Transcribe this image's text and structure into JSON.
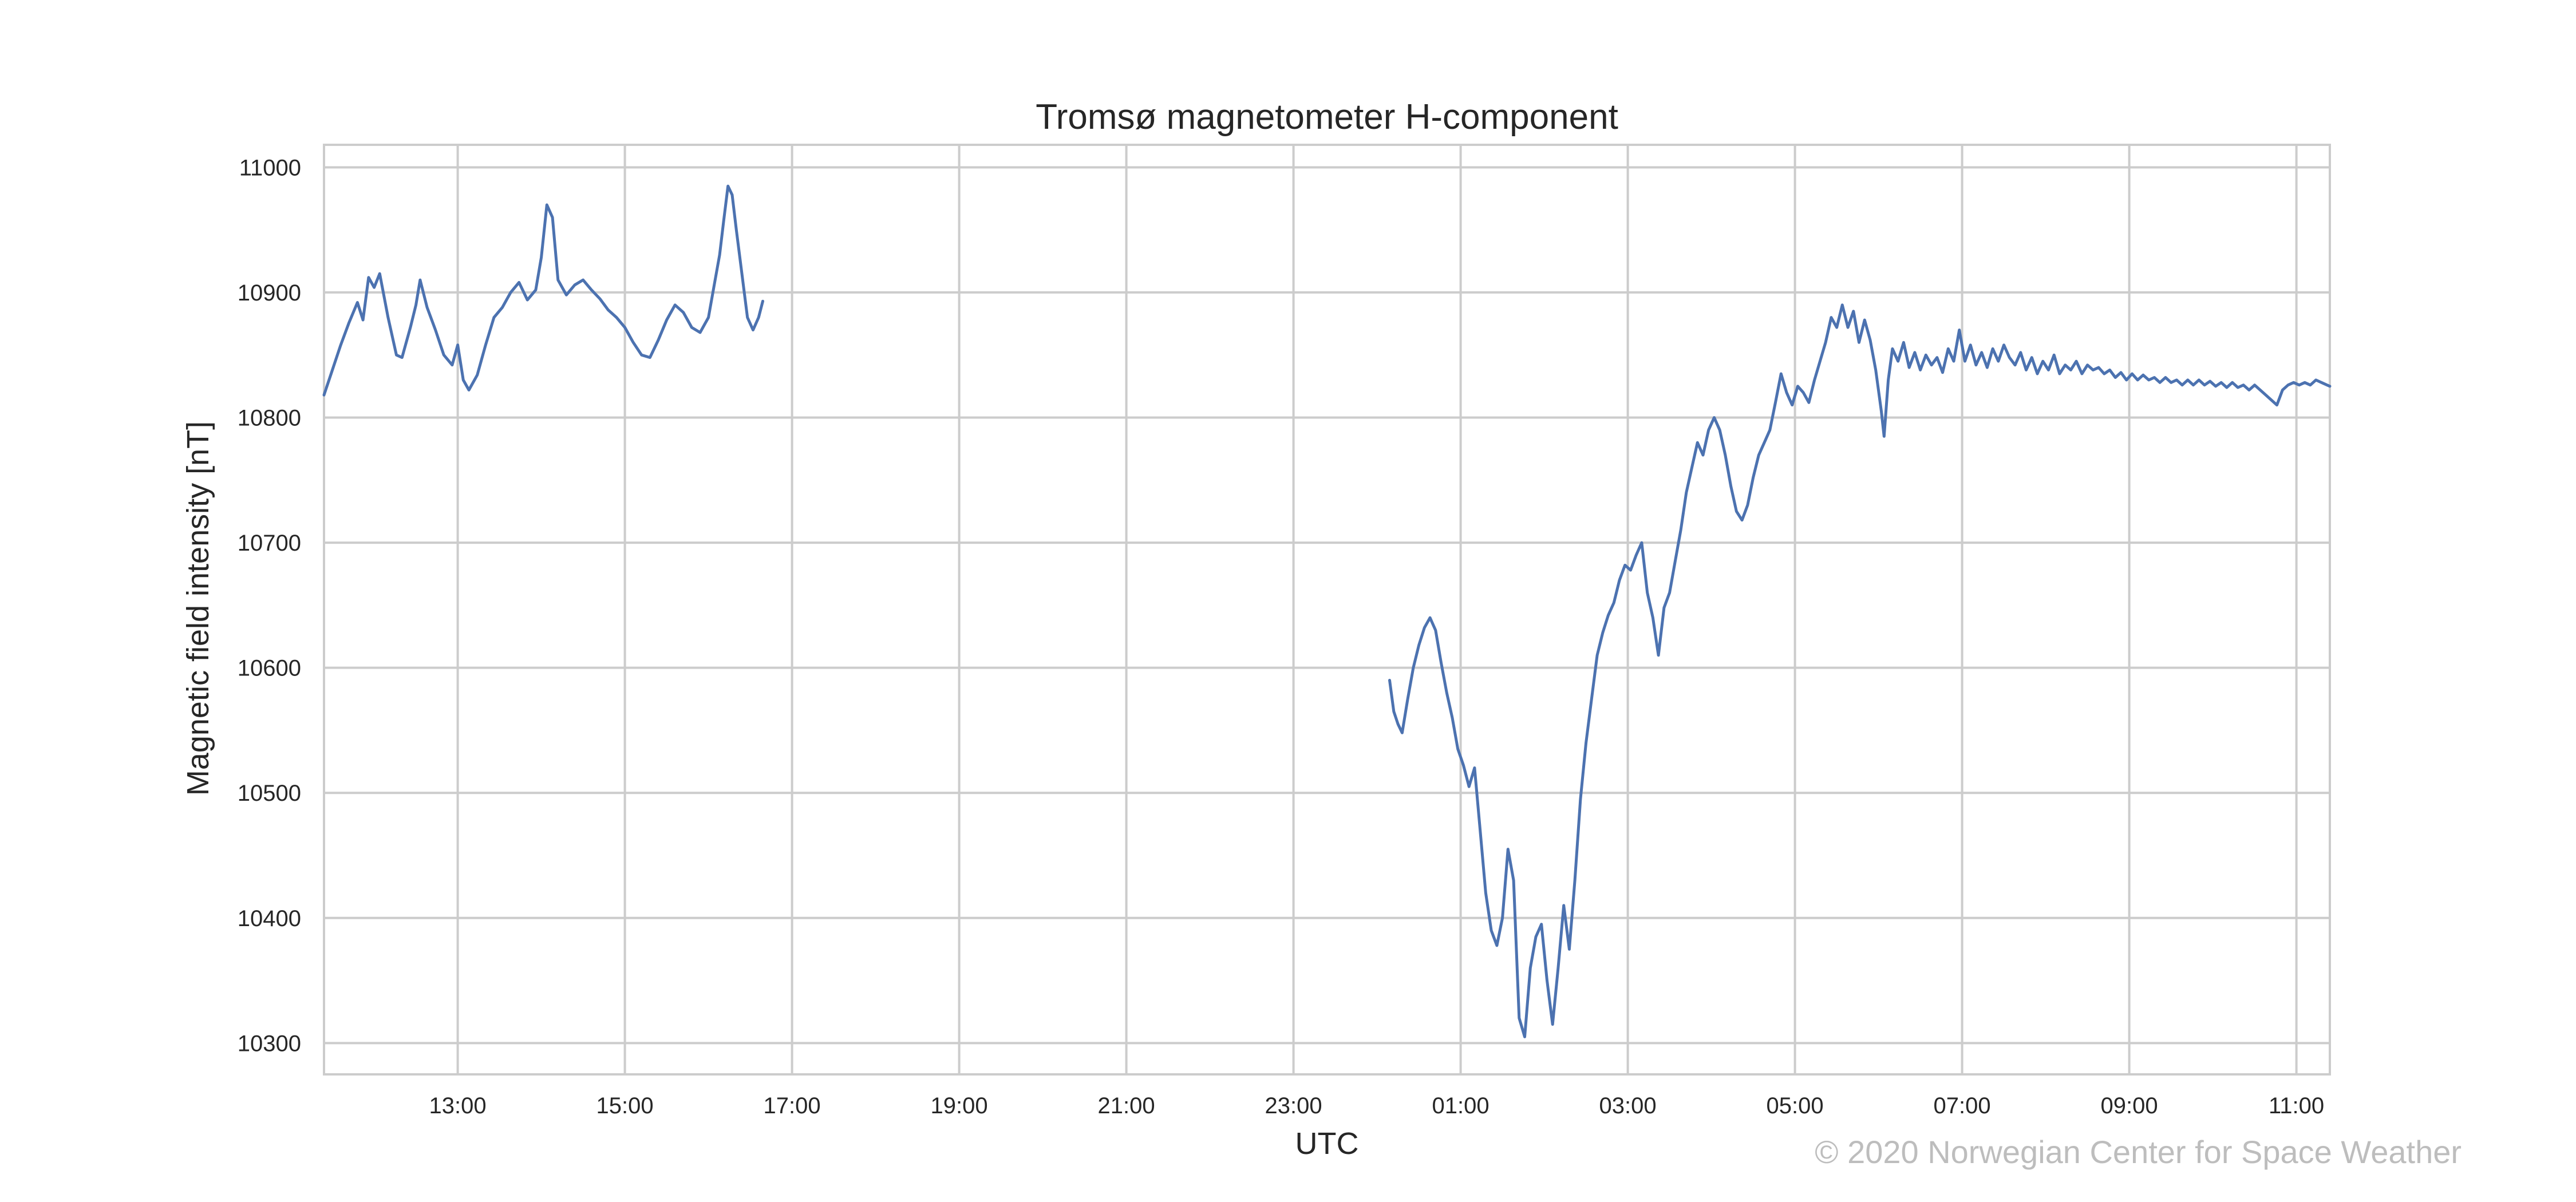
{
  "chart_data": {
    "type": "line",
    "title": "Tromsø magnetometer H-component",
    "xlabel": "UTC",
    "ylabel": "Magnetic field intensity [nT]",
    "x_axis": {
      "start": "11:24",
      "end": "11:24 (+1 day)",
      "tick_labels": [
        "13:00",
        "15:00",
        "17:00",
        "19:00",
        "21:00",
        "23:00",
        "01:00",
        "03:00",
        "05:00",
        "07:00",
        "09:00",
        "11:00"
      ]
    },
    "ylim": [
      10275,
      11018
    ],
    "y_ticks": [
      10300,
      10400,
      10500,
      10600,
      10700,
      10800,
      10900,
      11000
    ],
    "grid": true,
    "legend": "none",
    "line_color": "#4c72b0",
    "series": [
      {
        "segments": [
          [
            [
              "11:24",
              10818
            ],
            [
              "11:30",
              10838
            ],
            [
              "11:36",
              10858
            ],
            [
              "11:42",
              10876
            ],
            [
              "11:48",
              10892
            ],
            [
              "11:52",
              10878
            ],
            [
              "11:56",
              10912
            ],
            [
              "12:00",
              10904
            ],
            [
              "12:04",
              10915
            ],
            [
              "12:10",
              10880
            ],
            [
              "12:16",
              10850
            ],
            [
              "12:20",
              10848
            ],
            [
              "12:26",
              10872
            ],
            [
              "12:30",
              10890
            ],
            [
              "12:33",
              10910
            ],
            [
              "12:38",
              10888
            ],
            [
              "12:44",
              10870
            ],
            [
              "12:50",
              10850
            ],
            [
              "12:56",
              10842
            ],
            [
              "13:00",
              10858
            ],
            [
              "13:04",
              10830
            ],
            [
              "13:08",
              10822
            ],
            [
              "13:14",
              10834
            ],
            [
              "13:20",
              10858
            ],
            [
              "13:26",
              10880
            ],
            [
              "13:32",
              10888
            ],
            [
              "13:38",
              10900
            ],
            [
              "13:44",
              10908
            ],
            [
              "13:50",
              10894
            ],
            [
              "13:56",
              10902
            ],
            [
              "14:00",
              10928
            ],
            [
              "14:04",
              10970
            ],
            [
              "14:08",
              10960
            ],
            [
              "14:12",
              10910
            ],
            [
              "14:18",
              10898
            ],
            [
              "14:24",
              10906
            ],
            [
              "14:30",
              10910
            ],
            [
              "14:36",
              10902
            ],
            [
              "14:42",
              10895
            ],
            [
              "14:48",
              10886
            ],
            [
              "14:54",
              10880
            ],
            [
              "15:00",
              10872
            ],
            [
              "15:06",
              10860
            ],
            [
              "15:12",
              10850
            ],
            [
              "15:18",
              10848
            ],
            [
              "15:24",
              10862
            ],
            [
              "15:30",
              10878
            ],
            [
              "15:36",
              10890
            ],
            [
              "15:42",
              10884
            ],
            [
              "15:48",
              10872
            ],
            [
              "15:54",
              10868
            ],
            [
              "16:00",
              10880
            ],
            [
              "16:04",
              10905
            ],
            [
              "16:08",
              10930
            ],
            [
              "16:11",
              10958
            ],
            [
              "16:14",
              10985
            ],
            [
              "16:17",
              10978
            ],
            [
              "16:20",
              10950
            ],
            [
              "16:24",
              10915
            ],
            [
              "16:28",
              10880
            ],
            [
              "16:32",
              10870
            ],
            [
              "16:36",
              10880
            ],
            [
              "16:39",
              10893
            ]
          ],
          [
            [
              "00:09",
              10590
            ],
            [
              "00:12",
              10565
            ],
            [
              "00:15",
              10555
            ],
            [
              "00:18",
              10548
            ],
            [
              "00:22",
              10575
            ],
            [
              "00:26",
              10600
            ],
            [
              "00:30",
              10618
            ],
            [
              "00:34",
              10632
            ],
            [
              "00:38",
              10640
            ],
            [
              "00:42",
              10630
            ],
            [
              "00:46",
              10604
            ],
            [
              "00:50",
              10580
            ],
            [
              "00:54",
              10560
            ],
            [
              "00:58",
              10535
            ],
            [
              "01:02",
              10522
            ],
            [
              "01:06",
              10505
            ],
            [
              "01:10",
              10520
            ],
            [
              "01:14",
              10470
            ],
            [
              "01:18",
              10420
            ],
            [
              "01:22",
              10390
            ],
            [
              "01:26",
              10378
            ],
            [
              "01:30",
              10400
            ],
            [
              "01:34",
              10455
            ],
            [
              "01:38",
              10430
            ],
            [
              "01:42",
              10320
            ],
            [
              "01:46",
              10305
            ],
            [
              "01:50",
              10360
            ],
            [
              "01:54",
              10385
            ],
            [
              "01:58",
              10395
            ],
            [
              "02:02",
              10350
            ],
            [
              "02:06",
              10315
            ],
            [
              "02:10",
              10360
            ],
            [
              "02:14",
              10410
            ],
            [
              "02:18",
              10375
            ],
            [
              "02:22",
              10430
            ],
            [
              "02:26",
              10495
            ],
            [
              "02:30",
              10540
            ],
            [
              "02:34",
              10575
            ],
            [
              "02:38",
              10610
            ],
            [
              "02:42",
              10628
            ],
            [
              "02:46",
              10642
            ],
            [
              "02:50",
              10652
            ],
            [
              "02:54",
              10670
            ],
            [
              "02:58",
              10682
            ],
            [
              "03:02",
              10678
            ],
            [
              "03:06",
              10690
            ],
            [
              "03:10",
              10700
            ],
            [
              "03:14",
              10660
            ],
            [
              "03:18",
              10640
            ],
            [
              "03:22",
              10610
            ],
            [
              "03:26",
              10648
            ],
            [
              "03:30",
              10660
            ],
            [
              "03:34",
              10685
            ],
            [
              "03:38",
              10710
            ],
            [
              "03:42",
              10740
            ],
            [
              "03:46",
              10760
            ],
            [
              "03:50",
              10780
            ],
            [
              "03:54",
              10770
            ],
            [
              "03:58",
              10790
            ],
            [
              "04:02",
              10800
            ],
            [
              "04:06",
              10790
            ],
            [
              "04:10",
              10770
            ],
            [
              "04:14",
              10745
            ],
            [
              "04:18",
              10725
            ],
            [
              "04:22",
              10718
            ],
            [
              "04:26",
              10730
            ],
            [
              "04:30",
              10752
            ],
            [
              "04:34",
              10770
            ],
            [
              "04:38",
              10780
            ],
            [
              "04:42",
              10790
            ],
            [
              "04:46",
              10812
            ],
            [
              "04:50",
              10835
            ],
            [
              "04:54",
              10820
            ],
            [
              "04:58",
              10810
            ],
            [
              "05:02",
              10825
            ],
            [
              "05:06",
              10820
            ],
            [
              "05:10",
              10812
            ],
            [
              "05:14",
              10830
            ],
            [
              "05:18",
              10845
            ],
            [
              "05:22",
              10860
            ],
            [
              "05:26",
              10880
            ],
            [
              "05:30",
              10872
            ],
            [
              "05:34",
              10890
            ],
            [
              "05:38",
              10872
            ],
            [
              "05:42",
              10885
            ],
            [
              "05:46",
              10860
            ],
            [
              "05:50",
              10878
            ],
            [
              "05:54",
              10862
            ],
            [
              "05:58",
              10838
            ],
            [
              "06:02",
              10805
            ],
            [
              "06:04",
              10785
            ],
            [
              "06:07",
              10830
            ],
            [
              "06:10",
              10855
            ],
            [
              "06:14",
              10845
            ],
            [
              "06:18",
              10860
            ],
            [
              "06:22",
              10840
            ],
            [
              "06:26",
              10852
            ],
            [
              "06:30",
              10838
            ],
            [
              "06:34",
              10850
            ],
            [
              "06:38",
              10842
            ],
            [
              "06:42",
              10848
            ],
            [
              "06:46",
              10836
            ],
            [
              "06:50",
              10855
            ],
            [
              "06:54",
              10845
            ],
            [
              "06:58",
              10870
            ],
            [
              "07:02",
              10845
            ],
            [
              "07:06",
              10858
            ],
            [
              "07:10",
              10842
            ],
            [
              "07:14",
              10852
            ],
            [
              "07:18",
              10840
            ],
            [
              "07:22",
              10855
            ],
            [
              "07:26",
              10845
            ],
            [
              "07:30",
              10858
            ],
            [
              "07:34",
              10848
            ],
            [
              "07:38",
              10842
            ],
            [
              "07:42",
              10852
            ],
            [
              "07:46",
              10838
            ],
            [
              "07:50",
              10848
            ],
            [
              "07:54",
              10835
            ],
            [
              "07:58",
              10845
            ],
            [
              "08:02",
              10838
            ],
            [
              "08:06",
              10850
            ],
            [
              "08:10",
              10835
            ],
            [
              "08:14",
              10842
            ],
            [
              "08:18",
              10838
            ],
            [
              "08:22",
              10845
            ],
            [
              "08:26",
              10835
            ],
            [
              "08:30",
              10842
            ],
            [
              "08:34",
              10838
            ],
            [
              "08:38",
              10840
            ],
            [
              "08:42",
              10835
            ],
            [
              "08:46",
              10838
            ],
            [
              "08:50",
              10832
            ],
            [
              "08:54",
              10836
            ],
            [
              "08:58",
              10830
            ],
            [
              "09:02",
              10835
            ],
            [
              "09:06",
              10830
            ],
            [
              "09:10",
              10834
            ],
            [
              "09:14",
              10830
            ],
            [
              "09:18",
              10832
            ],
            [
              "09:22",
              10828
            ],
            [
              "09:26",
              10832
            ],
            [
              "09:30",
              10828
            ],
            [
              "09:34",
              10830
            ],
            [
              "09:38",
              10826
            ],
            [
              "09:42",
              10830
            ],
            [
              "09:46",
              10826
            ],
            [
              "09:50",
              10830
            ],
            [
              "09:54",
              10826
            ],
            [
              "09:58",
              10829
            ],
            [
              "10:02",
              10825
            ],
            [
              "10:06",
              10828
            ],
            [
              "10:10",
              10824
            ],
            [
              "10:14",
              10828
            ],
            [
              "10:18",
              10824
            ],
            [
              "10:22",
              10826
            ],
            [
              "10:26",
              10822
            ],
            [
              "10:30",
              10826
            ],
            [
              "10:34",
              10822
            ],
            [
              "10:38",
              10818
            ],
            [
              "10:42",
              10814
            ],
            [
              "10:46",
              10810
            ],
            [
              "10:50",
              10822
            ],
            [
              "10:54",
              10826
            ],
            [
              "10:58",
              10828
            ],
            [
              "11:02",
              10826
            ],
            [
              "11:06",
              10828
            ],
            [
              "11:10",
              10826
            ],
            [
              "11:14",
              10830
            ],
            [
              "11:18",
              10828
            ],
            [
              "11:22",
              10826
            ],
            [
              "11:24",
              10825
            ]
          ]
        ]
      }
    ]
  },
  "footer": {
    "copyright": "© 2020 Norwegian Center for Space Weather"
  }
}
